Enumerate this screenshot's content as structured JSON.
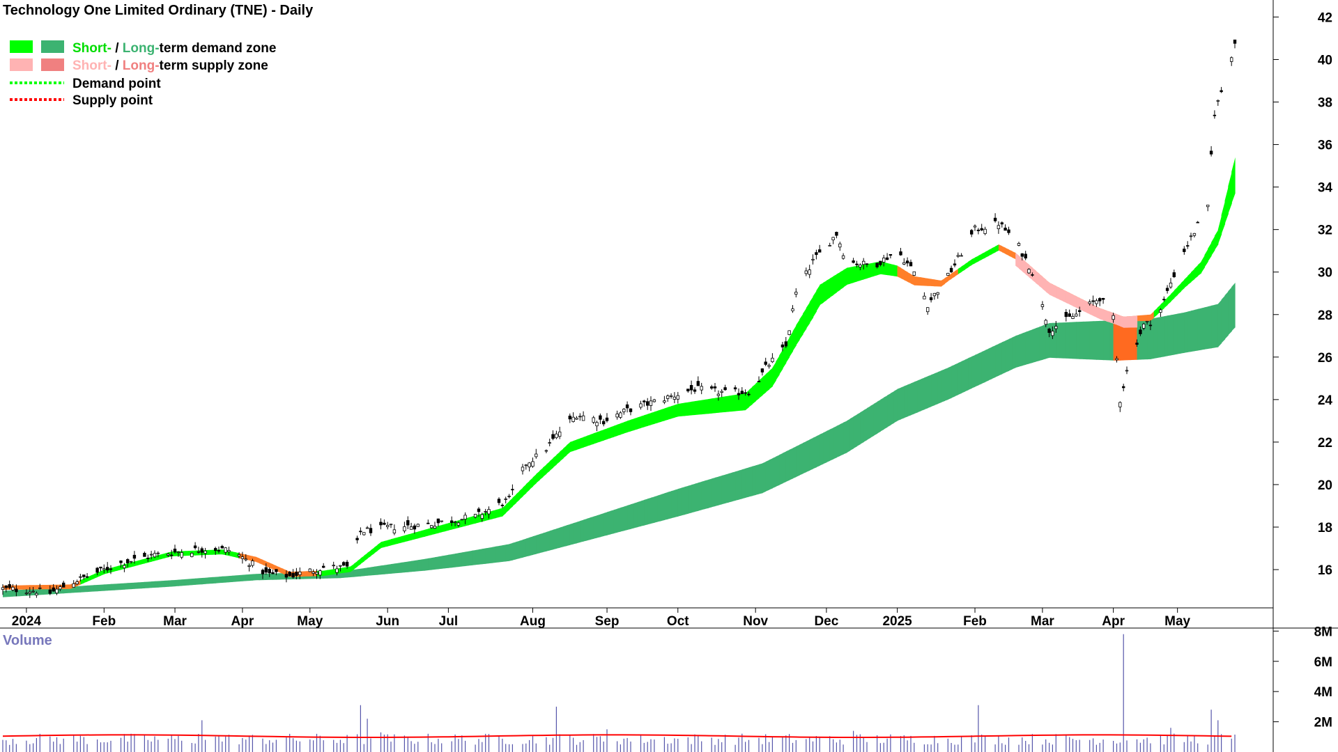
{
  "chart_data": [
    {
      "type": "candlestick",
      "title": "Technology One Limited Ordinary (TNE) - Daily",
      "ylim": [
        14.2,
        42.8
      ],
      "y_ticks": [
        16,
        18,
        20,
        22,
        24,
        26,
        28,
        30,
        32,
        34,
        36,
        38,
        40,
        42
      ],
      "x_ticks": [
        "2024",
        "Feb",
        "Mar",
        "Apr",
        "May",
        "Jun",
        "Jul",
        "Aug",
        "Sep",
        "Oct",
        "Nov",
        "Dec",
        "2025",
        "Feb",
        "Mar",
        "Apr",
        "May"
      ],
      "x_tick_days": [
        7,
        30,
        51,
        71,
        91,
        114,
        132,
        157,
        179,
        200,
        223,
        244,
        265,
        288,
        308,
        329,
        348
      ],
      "price_anchors": [
        [
          0,
          15.1
        ],
        [
          10,
          15.0
        ],
        [
          14,
          14.9
        ],
        [
          22,
          15.5
        ],
        [
          35,
          16.3
        ],
        [
          45,
          16.7
        ],
        [
          55,
          16.9
        ],
        [
          62,
          17.0
        ],
        [
          68,
          16.9
        ],
        [
          78,
          15.8
        ],
        [
          85,
          15.7
        ],
        [
          95,
          16.1
        ],
        [
          103,
          16.1
        ],
        [
          106,
          17.8
        ],
        [
          115,
          18.0
        ],
        [
          125,
          18.1
        ],
        [
          140,
          18.5
        ],
        [
          150,
          19.3
        ],
        [
          155,
          21.0
        ],
        [
          160,
          21.5
        ],
        [
          165,
          22.5
        ],
        [
          170,
          23.3
        ],
        [
          178,
          23.0
        ],
        [
          185,
          23.5
        ],
        [
          195,
          24.0
        ],
        [
          205,
          24.5
        ],
        [
          215,
          24.3
        ],
        [
          222,
          24.4
        ],
        [
          226,
          25.5
        ],
        [
          232,
          26.5
        ],
        [
          235,
          29.0
        ],
        [
          240,
          30.5
        ],
        [
          247,
          31.8
        ],
        [
          250,
          30.5
        ],
        [
          258,
          30.3
        ],
        [
          265,
          31.0
        ],
        [
          270,
          30.0
        ],
        [
          274,
          28.5
        ],
        [
          280,
          29.8
        ],
        [
          288,
          32.0
        ],
        [
          295,
          32.3
        ],
        [
          300,
          31.5
        ],
        [
          305,
          30.0
        ],
        [
          310,
          27.3
        ],
        [
          318,
          28.0
        ],
        [
          325,
          28.8
        ],
        [
          329,
          27.8
        ],
        [
          331,
          24.0
        ],
        [
          334,
          26.0
        ],
        [
          338,
          27.5
        ],
        [
          342,
          27.8
        ],
        [
          346,
          29.5
        ],
        [
          350,
          31.0
        ],
        [
          355,
          32.5
        ],
        [
          357,
          33.0
        ],
        [
          358,
          35.5
        ],
        [
          359,
          37.5
        ],
        [
          361,
          38.5
        ],
        [
          365,
          40.8
        ]
      ],
      "series": [
        {
          "name": "Short-term demand zone",
          "color": "#00ff00"
        },
        {
          "name": "Long-term demand zone",
          "color": "#3cb371"
        },
        {
          "name": "Short-term supply zone",
          "color": "#ffb3b3"
        },
        {
          "name": "Long-term supply zone",
          "color": "#f08080"
        }
      ],
      "short_zone": {
        "upper_anchors": [
          [
            0,
            15.25
          ],
          [
            20,
            15.3
          ],
          [
            30,
            16.0
          ],
          [
            50,
            16.85
          ],
          [
            65,
            16.95
          ],
          [
            75,
            16.6
          ],
          [
            85,
            15.9
          ],
          [
            95,
            15.95
          ],
          [
            103,
            16.15
          ],
          [
            112,
            17.3
          ],
          [
            130,
            18.1
          ],
          [
            148,
            18.9
          ],
          [
            158,
            20.5
          ],
          [
            168,
            22.0
          ],
          [
            185,
            23.0
          ],
          [
            200,
            23.8
          ],
          [
            220,
            24.3
          ],
          [
            228,
            25.5
          ],
          [
            235,
            27.5
          ],
          [
            242,
            29.4
          ],
          [
            250,
            30.2
          ],
          [
            260,
            30.5
          ],
          [
            265,
            30.3
          ],
          [
            270,
            29.8
          ],
          [
            278,
            29.6
          ],
          [
            287,
            30.6
          ],
          [
            295,
            31.3
          ],
          [
            300,
            30.9
          ],
          [
            310,
            29.5
          ],
          [
            320,
            28.7
          ],
          [
            325,
            28.3
          ],
          [
            332,
            27.9
          ],
          [
            340,
            28.0
          ],
          [
            345,
            28.8
          ],
          [
            355,
            30.5
          ],
          [
            360,
            32.0
          ],
          [
            365,
            35.4
          ]
        ],
        "thickness_anchors": [
          [
            0,
            0.2
          ],
          [
            100,
            0.25
          ],
          [
            150,
            0.4
          ],
          [
            200,
            0.6
          ],
          [
            240,
            1.0
          ],
          [
            260,
            0.6
          ],
          [
            280,
            0.25
          ],
          [
            300,
            0.3
          ],
          [
            330,
            0.2
          ],
          [
            350,
            0.4
          ],
          [
            360,
            0.7
          ],
          [
            365,
            1.7
          ]
        ],
        "supply_ranges": [
          [
            0,
            22
          ],
          [
            70,
            92
          ],
          [
            265,
            282
          ],
          [
            295,
            340
          ]
        ]
      },
      "long_zone": {
        "upper_anchors": [
          [
            0,
            15.0
          ],
          [
            20,
            15.2
          ],
          [
            50,
            15.5
          ],
          [
            75,
            15.8
          ],
          [
            100,
            15.9
          ],
          [
            125,
            16.5
          ],
          [
            150,
            17.2
          ],
          [
            175,
            18.5
          ],
          [
            200,
            19.8
          ],
          [
            225,
            21.0
          ],
          [
            250,
            23.0
          ],
          [
            265,
            24.5
          ],
          [
            280,
            25.5
          ],
          [
            300,
            27.0
          ],
          [
            310,
            27.6
          ],
          [
            325,
            27.7
          ],
          [
            340,
            27.8
          ],
          [
            350,
            28.1
          ],
          [
            360,
            28.5
          ],
          [
            365,
            29.5
          ]
        ],
        "thickness_anchors": [
          [
            0,
            0.3
          ],
          [
            100,
            0.3
          ],
          [
            150,
            0.8
          ],
          [
            200,
            1.3
          ],
          [
            250,
            1.5
          ],
          [
            300,
            1.5
          ],
          [
            330,
            1.9
          ],
          [
            350,
            1.9
          ],
          [
            365,
            2.1
          ]
        ],
        "supply_ranges": [
          [
            329,
            335
          ]
        ]
      },
      "legend": [
        {
          "short_label": "Short-",
          "long_label": "Long-",
          "text": "term demand zone"
        },
        {
          "short_label": "Short-",
          "long_label": "Long-",
          "text": "term supply zone"
        },
        {
          "label": "Demand point",
          "color": "#00ff00"
        },
        {
          "label": "Supply point",
          "color": "#ff0000"
        }
      ]
    },
    {
      "type": "bar",
      "title": "Volume",
      "ylim": [
        0,
        8200000
      ],
      "y_ticks": [
        2000000,
        4000000,
        6000000,
        8000000
      ],
      "y_tick_labels": [
        "2M",
        "4M",
        "6M",
        "8M"
      ],
      "baseline_volume": 850000,
      "spikes": [
        [
          58,
          1200000
        ],
        [
          59,
          2100000
        ],
        [
          61,
          2700000
        ],
        [
          64,
          1100000
        ],
        [
          104,
          2500000
        ],
        [
          106,
          3100000
        ],
        [
          108,
          2200000
        ],
        [
          112,
          1300000
        ],
        [
          164,
          3000000
        ],
        [
          179,
          1500000
        ],
        [
          236,
          1600000
        ],
        [
          252,
          1400000
        ],
        [
          265,
          2100000
        ],
        [
          289,
          3100000
        ],
        [
          332,
          7800000
        ],
        [
          346,
          1600000
        ],
        [
          349,
          2300000
        ],
        [
          358,
          2800000
        ],
        [
          360,
          2100000
        ]
      ],
      "average_line_color": "#ff0000",
      "average_level": 1050000
    }
  ]
}
